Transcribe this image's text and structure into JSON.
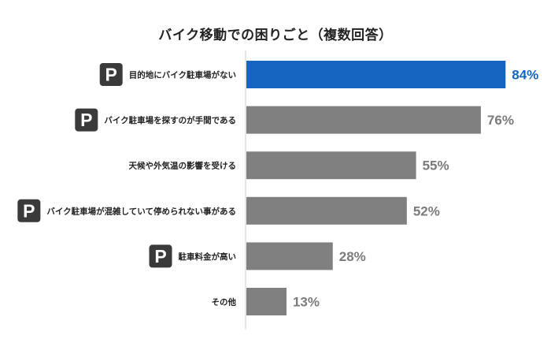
{
  "chart_data": {
    "type": "bar",
    "orientation": "horizontal",
    "title": "バイク移動での困りごと（複数回答）",
    "categories": [
      "目的地にバイク駐車場がない",
      "バイク駐車場を探すのが手間である",
      "天候や外気温の影響を受ける",
      "バイク駐車場が混雑していて停められない事がある",
      "駐車料金が高い",
      "その他"
    ],
    "values": [
      84,
      76,
      55,
      52,
      28,
      13
    ],
    "value_labels": [
      "84%",
      "76%",
      "55%",
      "52%",
      "28%",
      "13%"
    ],
    "unit": "%",
    "xlim": [
      0,
      100
    ],
    "grid": false,
    "highlight_index": 0,
    "parking_icon_rows": [
      0,
      1,
      3,
      4
    ],
    "parking_icon_text": "P",
    "colors": {
      "highlight": "#1565c0",
      "bar": "#808080",
      "label_highlight": "#1565c0",
      "label": "#7a7a7a",
      "icon_bg": "#3a3a3a",
      "axis": "#cfcfcf"
    }
  }
}
